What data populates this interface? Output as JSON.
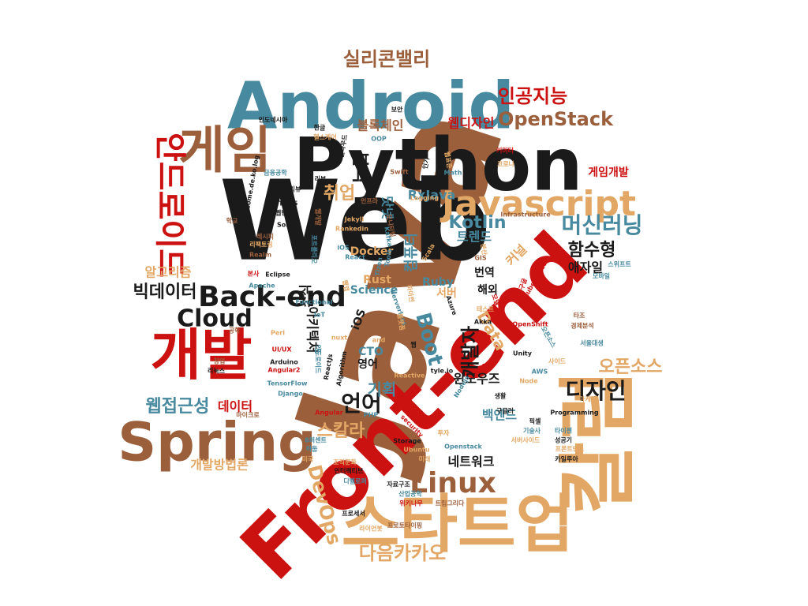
{
  "palette": {
    "black": "#1a1a1a",
    "teal": "#47899e",
    "brown": "#9c5f3c",
    "red": "#cc1111",
    "orange": "#e3a765"
  },
  "words": [
    {
      "text": "Java",
      "color": "brown"
    },
    {
      "text": "Web",
      "color": "black"
    },
    {
      "text": "Front-end",
      "color": "red"
    },
    {
      "text": "Python",
      "color": "black"
    },
    {
      "text": "Android",
      "color": "teal"
    },
    {
      "text": "칼럼",
      "color": "orange"
    },
    {
      "text": "스타트업",
      "color": "orange"
    },
    {
      "text": "Spring",
      "color": "brown"
    },
    {
      "text": "개발",
      "color": "red"
    },
    {
      "text": "게임",
      "color": "brown"
    },
    {
      "text": "Javascript",
      "color": "orange"
    },
    {
      "text": "안드로이드",
      "color": "red"
    },
    {
      "text": "Back-end",
      "color": "black"
    },
    {
      "text": "Cloud",
      "color": "black"
    },
    {
      "text": "Linux",
      "color": "brown"
    },
    {
      "text": "머신러닝",
      "color": "teal"
    },
    {
      "text": "Boot",
      "color": "teal"
    },
    {
      "text": "실리콘밸리",
      "color": "brown"
    },
    {
      "text": "인공지능",
      "color": "red"
    },
    {
      "text": "OpenStack",
      "color": "brown"
    },
    {
      "text": "디자인",
      "color": "black"
    },
    {
      "text": "언어",
      "color": "black"
    },
    {
      "text": "다음카카오",
      "color": "orange"
    },
    {
      "text": "DevOps",
      "color": "orange"
    },
    {
      "text": "웹접근성",
      "color": "teal"
    },
    {
      "text": "빅데이터",
      "color": "black"
    },
    {
      "text": "오픈소스",
      "color": "orange"
    },
    {
      "text": "함수형",
      "color": "black"
    },
    {
      "text": "Kotlin",
      "color": "teal"
    },
    {
      "text": "취업",
      "color": "orange"
    },
    {
      "text": "분석",
      "color": "black"
    },
    {
      "text": "스칼라",
      "color": "orange"
    },
    {
      "text": "기획",
      "color": "teal"
    },
    {
      "text": "개발자",
      "color": "black"
    },
    {
      "text": "Data",
      "color": "orange"
    },
    {
      "text": "RxJava",
      "color": "teal"
    },
    {
      "text": "블록체인",
      "color": "brown"
    },
    {
      "text": "웹디자인",
      "color": "red"
    },
    {
      "text": "알고리즘",
      "color": "orange"
    },
    {
      "text": "개발방법론",
      "color": "orange"
    },
    {
      "text": "데이터",
      "color": "red"
    },
    {
      "text": "네트워크",
      "color": "black"
    },
    {
      "text": "백엔드",
      "color": "teal"
    },
    {
      "text": "트렌드",
      "color": "teal"
    },
    {
      "text": "애자일",
      "color": "black"
    },
    {
      "text": "컴퓨터",
      "color": "teal"
    },
    {
      "text": "닷넷",
      "color": "teal"
    },
    {
      "text": "커널",
      "color": "orange"
    },
    {
      "text": "게임개발",
      "color": "red"
    },
    {
      "text": "아키텍처",
      "color": "black"
    },
    {
      "text": "소식",
      "color": "black"
    },
    {
      "text": "윈도우즈",
      "color": "black"
    },
    {
      "text": "번역",
      "color": "black"
    },
    {
      "text": "해외",
      "color": "black"
    },
    {
      "text": "Docker",
      "color": "orange"
    },
    {
      "text": "Science",
      "color": "teal"
    },
    {
      "text": "Ruby",
      "color": "teal"
    },
    {
      "text": "Rust",
      "color": "orange"
    },
    {
      "text": "서버",
      "color": "orange"
    },
    {
      "text": "CTO",
      "color": "teal"
    },
    {
      "text": "영어",
      "color": "black"
    },
    {
      "text": "iOS",
      "color": "black"
    },
    {
      "text": "HTML5",
      "color": "black"
    },
    {
      "text": "웹번역",
      "color": "black"
    },
    {
      "text": "Solr",
      "color": "black"
    },
    {
      "text": "IT소식/리뷰",
      "color": "black"
    },
    {
      "text": "오픈웹",
      "color": "black"
    },
    {
      "text": "금융공학",
      "color": "teal"
    },
    {
      "text": "Awesome.de.ko.log",
      "color": "black"
    },
    {
      "text": "Realm",
      "color": "brown"
    },
    {
      "text": "Eclipse",
      "color": "black"
    },
    {
      "text": "Apache",
      "color": "teal"
    },
    {
      "text": "Functional",
      "color": "teal"
    },
    {
      "text": "IoT",
      "color": "teal"
    },
    {
      "text": "UI/UX",
      "color": "red"
    },
    {
      "text": "Arduino",
      "color": "black"
    },
    {
      "text": "Angular2",
      "color": "red"
    },
    {
      "text": "TensorFlow",
      "color": "teal"
    },
    {
      "text": "Django",
      "color": "teal"
    },
    {
      "text": "마이크로",
      "color": "brown"
    },
    {
      "text": "리눅스",
      "color": "black"
    },
    {
      "text": "Angular",
      "color": "red"
    },
    {
      "text": "PHP",
      "color": "teal"
    },
    {
      "text": "Storage",
      "color": "black"
    },
    {
      "text": "Ubuntu",
      "color": "orange"
    },
    {
      "text": "Openstack",
      "color": "teal"
    },
    {
      "text": "Node",
      "color": "orange"
    },
    {
      "text": "AWS",
      "color": "teal"
    },
    {
      "text": "Unity",
      "color": "black"
    },
    {
      "text": "OpenShift",
      "color": "red"
    },
    {
      "text": "Kubernetes",
      "color": "red"
    },
    {
      "text": "Infrastructure",
      "color": "brown"
    },
    {
      "text": "Programming",
      "color": "black"
    },
    {
      "text": "Swift",
      "color": "brown"
    },
    {
      "text": "Math",
      "color": "teal"
    },
    {
      "text": "OOP",
      "color": "teal"
    },
    {
      "text": "Jekyll",
      "color": "orange"
    },
    {
      "text": "Rankedin",
      "color": "orange"
    },
    {
      "text": "React",
      "color": "teal"
    },
    {
      "text": "GIS",
      "color": "brown"
    },
    {
      "text": "Akka",
      "color": "black"
    },
    {
      "text": "Algorithm",
      "color": "black"
    },
    {
      "text": "Reactive",
      "color": "orange"
    },
    {
      "text": "커머터",
      "color": "red"
    },
    {
      "text": "코로나",
      "color": "orange"
    },
    {
      "text": "인도네시아",
      "color": "black"
    },
    {
      "text": "한글",
      "color": "black"
    },
    {
      "text": "헬스케어",
      "color": "orange"
    },
    {
      "text": "보안",
      "color": "black"
    },
    {
      "text": "클라우드",
      "color": "black"
    },
    {
      "text": "인기",
      "color": "black"
    },
    {
      "text": "리뷰",
      "color": "black"
    },
    {
      "text": "학교",
      "color": "brown"
    },
    {
      "text": "본사",
      "color": "red"
    },
    {
      "text": "스위프트",
      "color": "teal"
    },
    {
      "text": "모바일",
      "color": "teal"
    },
    {
      "text": "서울대생",
      "color": "teal"
    },
    {
      "text": "경제분석",
      "color": "brown"
    },
    {
      "text": "타조",
      "color": "brown"
    },
    {
      "text": "사이드",
      "color": "orange"
    },
    {
      "text": "역사",
      "color": "red"
    },
    {
      "text": "구글러",
      "color": "black"
    },
    {
      "text": "생활",
      "color": "black"
    },
    {
      "text": "픽셀",
      "color": "black"
    },
    {
      "text": "기술사",
      "color": "teal"
    },
    {
      "text": "타이젠",
      "color": "teal"
    },
    {
      "text": "서버사이드",
      "color": "orange"
    },
    {
      "text": "성공기",
      "color": "black"
    },
    {
      "text": "프론트엔드",
      "color": "orange"
    },
    {
      "text": "카일루아",
      "color": "black"
    },
    {
      "text": "8퍼센트",
      "color": "teal"
    },
    {
      "text": "하둡",
      "color": "teal"
    },
    {
      "text": "미국",
      "color": "orange"
    },
    {
      "text": "인터랙티브",
      "color": "black"
    },
    {
      "text": "디벨로퍼",
      "color": "teal"
    },
    {
      "text": "자료구조",
      "color": "black"
    },
    {
      "text": "산업공학",
      "color": "teal"
    },
    {
      "text": "위키나무",
      "color": "red"
    },
    {
      "text": "트립그리다",
      "color": "brown"
    },
    {
      "text": "프로세서",
      "color": "black"
    },
    {
      "text": "라이언봇",
      "color": "orange"
    },
    {
      "text": "프로토타이핑",
      "color": "brown"
    },
    {
      "text": "조직문화",
      "color": "orange"
    },
    {
      "text": "마케팅",
      "color": "orange"
    },
    {
      "text": "공학",
      "color": "brown"
    },
    {
      "text": "창업",
      "color": "brown"
    },
    {
      "text": "security",
      "color": "red"
    },
    {
      "text": "투자",
      "color": "orange"
    },
    {
      "text": "미래",
      "color": "orange"
    },
    {
      "text": "웹",
      "color": "black"
    },
    {
      "text": "Serverless",
      "color": "teal"
    },
    {
      "text": "Azure",
      "color": "black"
    },
    {
      "text": "Nodejs",
      "color": "teal"
    },
    {
      "text": "tyle.io",
      "color": "black"
    },
    {
      "text": "ReactJs",
      "color": "black"
    },
    {
      "text": "and",
      "color": "orange"
    },
    {
      "text": "Perl",
      "color": "orange"
    },
    {
      "text": "Logging",
      "color": "orange"
    },
    {
      "text": "Scala",
      "color": "orange"
    },
    {
      "text": "Tizen",
      "color": "teal"
    },
    {
      "text": "Tools",
      "color": "teal"
    },
    {
      "text": "iOS",
      "color": "teal"
    },
    {
      "text": "웹개발",
      "color": "brown"
    },
    {
      "text": "리팩토링",
      "color": "orange"
    },
    {
      "text": "포트폴리오",
      "color": "teal"
    },
    {
      "text": "파이썬",
      "color": "orange"
    },
    {
      "text": "오픈소스",
      "color": "teal"
    },
    {
      "text": "웹표준",
      "color": "orange"
    },
    {
      "text": "구글",
      "color": "red"
    },
    {
      "text": "모델",
      "color": "red"
    },
    {
      "text": "nuxt",
      "color": "orange"
    },
    {
      "text": "Kafka",
      "color": "teal"
    },
    {
      "text": "분산",
      "color": "orange"
    },
    {
      "text": "모니터링",
      "color": "brown"
    },
    {
      "text": "레시피",
      "color": "brown"
    },
    {
      "text": "플랫폼",
      "color": "orange"
    },
    {
      "text": "웹앱",
      "color": "orange"
    },
    {
      "text": "UI",
      "color": "teal"
    },
    {
      "text": "안드로이드",
      "color": "teal"
    },
    {
      "text": "인프라",
      "color": "brown"
    },
    {
      "text": "테스트",
      "color": "orange"
    }
  ]
}
